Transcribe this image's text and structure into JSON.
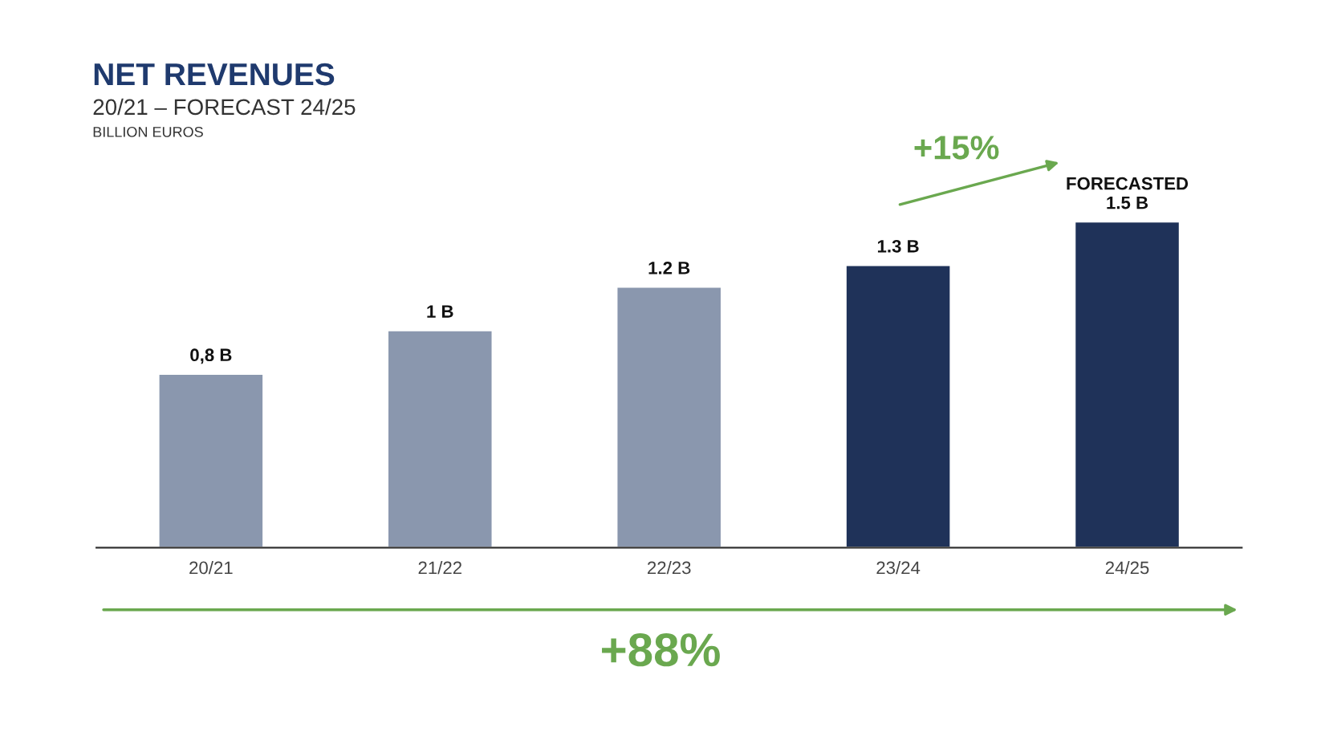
{
  "chart_data": {
    "type": "bar",
    "title": "NET REVENUES",
    "subtitle": "20/21 – FORECAST 24/25",
    "categories": [
      "20/21",
      "21/22",
      "22/23",
      "23/24",
      "24/25"
    ],
    "values": [
      0.8,
      1,
      1.2,
      1.3,
      1.5
    ],
    "value_labels": [
      "0,8 B",
      "1 B",
      "1.2 B",
      "1.3 B",
      "FORECASTED\n1.5 B"
    ],
    "colors": [
      "#8a97ae",
      "#8a97ae",
      "#8a97ae",
      "#1f3259",
      "#1f3259"
    ],
    "annotations": [
      "+15%",
      "+88%",
      "BILLION EUROS"
    ],
    "grid": false
  }
}
